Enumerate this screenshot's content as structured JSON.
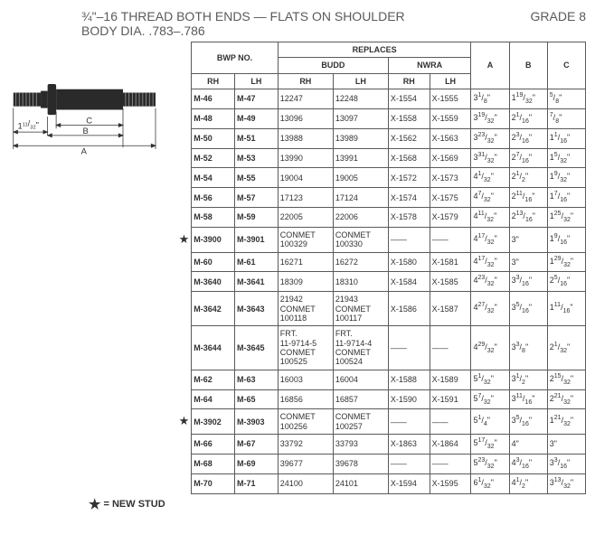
{
  "header": {
    "line1": "¾\"–16 THREAD BOTH ENDS — FLATS ON SHOULDER",
    "line2": "BODY DIA. .783–.786",
    "grade": "GRADE 8"
  },
  "diagram": {
    "label_small": "1",
    "label_small_num": "11",
    "label_small_den": "32",
    "label_small_suffix": "\"",
    "dimA": "A",
    "dimB": "B",
    "dimC": "C"
  },
  "table": {
    "group_headers": {
      "bwp": "BWP NO.",
      "replaces": "REPLACES",
      "budd": "BUDD",
      "nwra": "NWRA"
    },
    "col_headers": {
      "rh": "RH",
      "lh": "LH",
      "a": "A",
      "b": "B",
      "c": "C"
    },
    "rows": [
      {
        "star": "",
        "rh": "M-46",
        "lh": "M-47",
        "brh": "12247",
        "blh": "12248",
        "nrh": "X-1554",
        "nlh": "X-1555",
        "a": "3|1|8",
        "b": "1|19|32",
        "c": "|5|8"
      },
      {
        "star": "",
        "rh": "M-48",
        "lh": "M-49",
        "brh": "13096",
        "blh": "13097",
        "nrh": "X-1558",
        "nlh": "X-1559",
        "a": "3|19|32",
        "b": "2|1|16",
        "c": "|7|8"
      },
      {
        "star": "",
        "rh": "M-50",
        "lh": "M-51",
        "brh": "13988",
        "blh": "13989",
        "nrh": "X-1562",
        "nlh": "X-1563",
        "a": "3|23|32",
        "b": "2|3|16",
        "c": "1|1|16"
      },
      {
        "star": "",
        "rh": "M-52",
        "lh": "M-53",
        "brh": "13990",
        "blh": "13991",
        "nrh": "X-1568",
        "nlh": "X-1569",
        "a": "3|31|32",
        "b": "2|7|16",
        "c": "1|5|32"
      },
      {
        "star": "",
        "rh": "M-54",
        "lh": "M-55",
        "brh": "19004",
        "blh": "19005",
        "nrh": "X-1572",
        "nlh": "X-1573",
        "a": "4|1|32",
        "b": "2|1|2",
        "c": "1|9|32"
      },
      {
        "star": "",
        "rh": "M-56",
        "lh": "M-57",
        "brh": "17123",
        "blh": "17124",
        "nrh": "X-1574",
        "nlh": "X-1575",
        "a": "4|7|32",
        "b": "2|11|16",
        "c": "1|7|16"
      },
      {
        "star": "",
        "rh": "M-58",
        "lh": "M-59",
        "brh": "22005",
        "blh": "22006",
        "nrh": "X-1578",
        "nlh": "X-1579",
        "a": "4|11|32",
        "b": "2|13|16",
        "c": "1|25|32"
      },
      {
        "star": "★",
        "rh": "M-3900",
        "lh": "M-3901",
        "brh": "CONMET\n100329",
        "blh": "CONMET\n100330",
        "nrh": "——",
        "nlh": "——",
        "a": "4|17|32",
        "b": "3||",
        "c": "1|9|16"
      },
      {
        "star": "",
        "rh": "M-60",
        "lh": "M-61",
        "brh": "16271",
        "blh": "16272",
        "nrh": "X-1580",
        "nlh": "X-1581",
        "a": "4|17|32",
        "b": "3||",
        "c": "1|29|32"
      },
      {
        "star": "",
        "rh": "M-3640",
        "lh": "M-3641",
        "brh": "18309",
        "blh": "18310",
        "nrh": "X-1584",
        "nlh": "X-1585",
        "a": "4|23|32",
        "b": "3|3|16",
        "c": "2|5|16"
      },
      {
        "star": "",
        "rh": "M-3642",
        "lh": "M-3643",
        "brh": "21942\nCONMET\n100118",
        "blh": "21943\nCONMET\n100117",
        "nrh": "X-1586",
        "nlh": "X-1587",
        "a": "4|27|32",
        "b": "3|5|16",
        "c": "1|11|16"
      },
      {
        "star": "",
        "rh": "M-3644",
        "lh": "M-3645",
        "brh": "FRT.\n11-9714-5\nCONMET\n100525",
        "blh": "FRT.\n11-9714-4\nCONMET\n100524",
        "nrh": "——",
        "nlh": "——",
        "a": "4|29|32",
        "b": "3|3|8",
        "c": "2|1|32"
      },
      {
        "star": "",
        "rh": "M-62",
        "lh": "M-63",
        "brh": "16003",
        "blh": "16004",
        "nrh": "X-1588",
        "nlh": "X-1589",
        "a": "5|1|32",
        "b": "3|1|2",
        "c": "2|15|32"
      },
      {
        "star": "",
        "rh": "M-64",
        "lh": "M-65",
        "brh": "16856",
        "blh": "16857",
        "nrh": "X-1590",
        "nlh": "X-1591",
        "a": "5|7|32",
        "b": "3|11|16",
        "c": "2|21|32"
      },
      {
        "star": "★",
        "rh": "M-3902",
        "lh": "M-3903",
        "brh": "CONMET\n100256",
        "blh": "CONMET\n100257",
        "nrh": "——",
        "nlh": "——",
        "a": "5|1|4",
        "b": "3|5|16",
        "c": "1|21|32"
      },
      {
        "star": "",
        "rh": "M-66",
        "lh": "M-67",
        "brh": "33792",
        "blh": "33793",
        "nrh": "X-1863",
        "nlh": "X-1864",
        "a": "5|17|32",
        "b": "4||",
        "c": "3||"
      },
      {
        "star": "",
        "rh": "M-68",
        "lh": "M-69",
        "brh": "39677",
        "blh": "39678",
        "nrh": "——",
        "nlh": "——",
        "a": "5|23|32",
        "b": "4|3|16",
        "c": "3|3|16"
      },
      {
        "star": "",
        "rh": "M-70",
        "lh": "M-71",
        "brh": "24100",
        "blh": "24101",
        "nrh": "X-1594",
        "nlh": "X-1595",
        "a": "6|1|32",
        "b": "4|1|2",
        "c": "3|13|32"
      }
    ]
  },
  "legend": {
    "star": "★",
    "text": " = NEW STUD"
  }
}
